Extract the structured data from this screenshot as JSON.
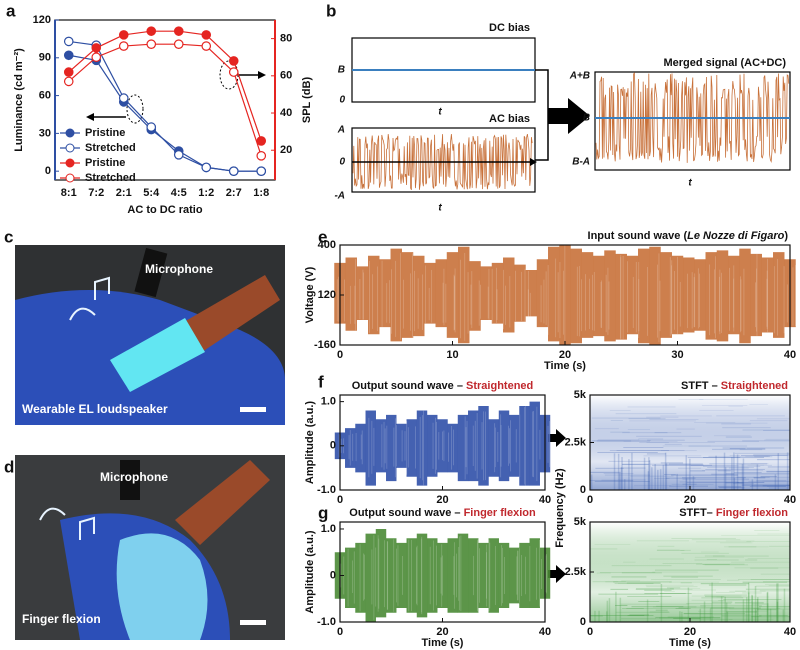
{
  "panel_labels": [
    "a",
    "b",
    "c",
    "d",
    "e",
    "f",
    "g"
  ],
  "schematic": {
    "dc_title": "DC bias",
    "dc_levels": [
      "B",
      "0"
    ],
    "ac_title": "AC bias",
    "ac_levels": [
      "A",
      "0",
      "-A"
    ],
    "merged_title": "Merged signal (AC+DC)",
    "merged_levels": [
      "A+B",
      "B",
      "B-A"
    ],
    "time_label": "t"
  },
  "photos": [
    {
      "microphone": "Microphone",
      "caption": "Wearable EL loudspeaker"
    },
    {
      "microphone": "Microphone",
      "caption": "Finger flexion"
    }
  ],
  "chart_data": [
    {
      "type": "line",
      "categories": [
        "8:1",
        "7:2",
        "2:1",
        "5:4",
        "4:5",
        "1:2",
        "2:7",
        "1:8"
      ],
      "x_label": "AC to DC ratio",
      "y_label": "Luminance (cd m⁻²)",
      "y2_label": "SPL (dB)",
      "ylim": [
        -7,
        120
      ],
      "yticks": [
        0,
        30,
        60,
        90,
        120
      ],
      "y2lim": [
        4,
        90
      ],
      "y2ticks": [
        20,
        40,
        60,
        80
      ],
      "series": [
        {
          "name": "Pristine",
          "color": "#2e4fa3",
          "marker": "filled",
          "values": [
            92,
            88,
            55,
            33,
            16,
            3,
            0,
            0
          ]
        },
        {
          "name": "Stretched",
          "color": "#2e4fa3",
          "marker": "open",
          "values": [
            103,
            100,
            58,
            35,
            13,
            3,
            0,
            0
          ]
        },
        {
          "name": "Pristine",
          "color": "#e52521",
          "marker": "filled",
          "axis": "y2",
          "values": [
            62,
            75,
            82,
            84,
            84,
            82,
            68,
            25
          ]
        },
        {
          "name": "Stretched",
          "color": "#e52521",
          "marker": "open",
          "axis": "y2",
          "values": [
            57,
            70,
            76,
            77,
            77,
            76,
            62,
            17
          ]
        }
      ]
    },
    {
      "type": "waveform",
      "title_prefix": "Input sound wave (",
      "title_italic": "Le Nozze di Figaro",
      "title_suffix": ")",
      "x_label": "Time (s)",
      "y_label": "Voltage (V)",
      "xlim": [
        0,
        40
      ],
      "xticks": [
        0,
        10,
        20,
        30,
        40
      ],
      "ylim": [
        -160,
        400
      ],
      "yticks": [
        -160,
        120,
        400
      ],
      "color": "#c8713a",
      "x": [
        0,
        1,
        2,
        3,
        4,
        5,
        6,
        7,
        8,
        9,
        10,
        11,
        12,
        13,
        14,
        15,
        16,
        17,
        18,
        19,
        20,
        21,
        22,
        23,
        24,
        25,
        26,
        27,
        28,
        29,
        30,
        31,
        32,
        33,
        34,
        35,
        36,
        37,
        38,
        39,
        40
      ],
      "upper": [
        300,
        330,
        280,
        340,
        320,
        380,
        360,
        340,
        300,
        320,
        360,
        390,
        310,
        280,
        300,
        330,
        290,
        260,
        320,
        390,
        400,
        380,
        360,
        340,
        370,
        350,
        340,
        380,
        390,
        360,
        340,
        330,
        320,
        360,
        370,
        340,
        380,
        350,
        330,
        360,
        320
      ],
      "lower": [
        -40,
        -80,
        -20,
        -100,
        -60,
        -140,
        -120,
        -110,
        -40,
        -60,
        -120,
        -150,
        -80,
        -20,
        -40,
        -90,
        -30,
        0,
        -60,
        -140,
        -160,
        -150,
        -120,
        -110,
        -140,
        -130,
        -100,
        -150,
        -160,
        -120,
        -100,
        -90,
        -80,
        -130,
        -140,
        -100,
        -150,
        -110,
        -90,
        -120,
        -60
      ]
    },
    {
      "type": "waveform",
      "title": "Output sound wave –",
      "title_highlight": "Straightened",
      "y_label": "Amplitude (a.u.)",
      "xlim": [
        0,
        40
      ],
      "xticks": [
        0,
        20,
        40
      ],
      "ylim": [
        -1,
        1.15
      ],
      "yticks": [
        {
          "value": -1,
          "label": "-1.0"
        },
        0,
        {
          "value": 1,
          "label": "1.0"
        }
      ],
      "color": "#3050a8",
      "x": [
        0,
        2,
        4,
        6,
        8,
        10,
        12,
        14,
        16,
        18,
        20,
        22,
        24,
        26,
        28,
        30,
        32,
        34,
        36,
        38,
        40
      ],
      "upper": [
        0.3,
        0.4,
        0.5,
        0.8,
        0.6,
        0.7,
        0.5,
        0.6,
        0.8,
        0.7,
        0.6,
        0.5,
        0.7,
        0.8,
        0.9,
        0.6,
        0.8,
        0.7,
        0.9,
        1.0,
        0.7
      ],
      "lower": [
        -0.3,
        -0.5,
        -0.6,
        -0.9,
        -0.6,
        -0.8,
        -0.5,
        -0.7,
        -0.9,
        -0.7,
        -0.6,
        -0.6,
        -0.8,
        -0.8,
        -0.9,
        -0.7,
        -0.8,
        -0.7,
        -0.9,
        -0.9,
        -0.6
      ]
    },
    {
      "type": "spectrogram",
      "title": "STFT –",
      "title_highlight": "Straightened",
      "y_label": "Frequency (Hz)",
      "xlim": [
        0,
        40
      ],
      "xticks": [
        0,
        20,
        40
      ],
      "ylim": [
        0,
        5
      ],
      "yticks": [
        0,
        {
          "value": 2.5,
          "label": "2.5k"
        },
        {
          "value": 5,
          "label": "5k"
        }
      ],
      "color": "#3a5fb0"
    },
    {
      "type": "waveform",
      "title": "Output sound wave –",
      "title_highlight": "Finger flexion",
      "x_label": "Time (s)",
      "y_label": "Amplitude (a.u.)",
      "xlim": [
        0,
        40
      ],
      "xticks": [
        0,
        20,
        40
      ],
      "ylim": [
        -1,
        1.15
      ],
      "yticks": [
        {
          "value": -1,
          "label": "-1.0"
        },
        0,
        {
          "value": 1,
          "label": "1.0"
        }
      ],
      "color": "#4a8a35",
      "x": [
        0,
        2,
        4,
        6,
        8,
        10,
        12,
        14,
        16,
        18,
        20,
        22,
        24,
        26,
        28,
        30,
        32,
        34,
        36,
        38,
        40
      ],
      "upper": [
        0.5,
        0.6,
        0.7,
        0.9,
        1.0,
        0.8,
        0.7,
        0.8,
        0.9,
        0.8,
        0.7,
        0.8,
        0.9,
        0.8,
        0.7,
        0.8,
        0.7,
        0.6,
        0.7,
        0.8,
        0.6
      ],
      "lower": [
        -0.5,
        -0.7,
        -0.8,
        -1.0,
        -0.9,
        -0.8,
        -0.7,
        -0.8,
        -0.9,
        -0.8,
        -0.7,
        -0.8,
        -0.8,
        -0.8,
        -0.7,
        -0.8,
        -0.7,
        -0.6,
        -0.7,
        -0.7,
        -0.5
      ]
    },
    {
      "type": "spectrogram",
      "title": "STFT–",
      "title_highlight": "Finger flexion",
      "x_label": "Time (s)",
      "xlim": [
        0,
        40
      ],
      "xticks": [
        0,
        20,
        40
      ],
      "ylim": [
        0,
        5
      ],
      "yticks": [
        0,
        {
          "value": 2.5,
          "label": "2.5k"
        },
        {
          "value": 5,
          "label": "5k"
        }
      ],
      "color": "#3f9a3f"
    }
  ]
}
